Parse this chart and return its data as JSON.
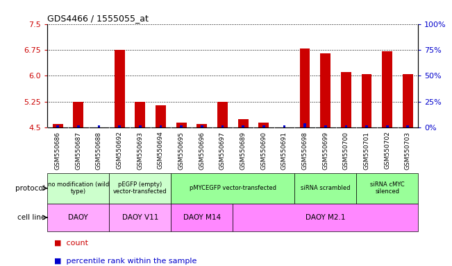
{
  "title": "GDS4466 / 1555055_at",
  "samples": [
    "GSM550686",
    "GSM550687",
    "GSM550688",
    "GSM550692",
    "GSM550693",
    "GSM550694",
    "GSM550695",
    "GSM550696",
    "GSM550697",
    "GSM550689",
    "GSM550690",
    "GSM550691",
    "GSM550698",
    "GSM550699",
    "GSM550700",
    "GSM550701",
    "GSM550702",
    "GSM550703"
  ],
  "counts": [
    4.6,
    5.25,
    4.5,
    6.75,
    5.25,
    5.15,
    4.65,
    4.6,
    5.25,
    4.75,
    4.65,
    4.5,
    6.8,
    6.65,
    6.1,
    6.05,
    6.7,
    6.05
  ],
  "percentiles_pct": [
    2,
    2,
    2,
    2,
    2,
    2,
    2,
    2,
    2,
    2,
    2,
    2,
    4,
    2,
    2,
    2,
    2,
    2
  ],
  "ylim_left": [
    4.5,
    7.5
  ],
  "yticks_left": [
    4.5,
    5.25,
    6.0,
    6.75,
    7.5
  ],
  "ylim_right": [
    0,
    100
  ],
  "yticks_right": [
    0,
    25,
    50,
    75,
    100
  ],
  "ytick_labels_right": [
    "0%",
    "25%",
    "50%",
    "75%",
    "100%"
  ],
  "bar_color_red": "#cc0000",
  "bar_color_blue": "#0000cc",
  "protocol_groups": [
    {
      "label": "no modification (wild\ntype)",
      "start": 0,
      "end": 3,
      "color": "#ccffcc"
    },
    {
      "label": "pEGFP (empty)\nvector-transfected",
      "start": 3,
      "end": 6,
      "color": "#ccffcc"
    },
    {
      "label": "pMYCEGFP vector-transfected",
      "start": 6,
      "end": 12,
      "color": "#99ff99"
    },
    {
      "label": "siRNA scrambled",
      "start": 12,
      "end": 15,
      "color": "#99ff99"
    },
    {
      "label": "siRNA cMYC\nsilenced",
      "start": 15,
      "end": 18,
      "color": "#99ff99"
    }
  ],
  "cellline_groups": [
    {
      "label": "DAOY",
      "start": 0,
      "end": 3,
      "color": "#ffaaff"
    },
    {
      "label": "DAOY V11",
      "start": 3,
      "end": 6,
      "color": "#ffaaff"
    },
    {
      "label": "DAOY M14",
      "start": 6,
      "end": 9,
      "color": "#ff88ff"
    },
    {
      "label": "DAOY M2.1",
      "start": 9,
      "end": 18,
      "color": "#ff88ff"
    }
  ],
  "xtick_bg": "#dddddd",
  "legend_count_color": "#cc0000",
  "legend_percentile_color": "#0000cc"
}
